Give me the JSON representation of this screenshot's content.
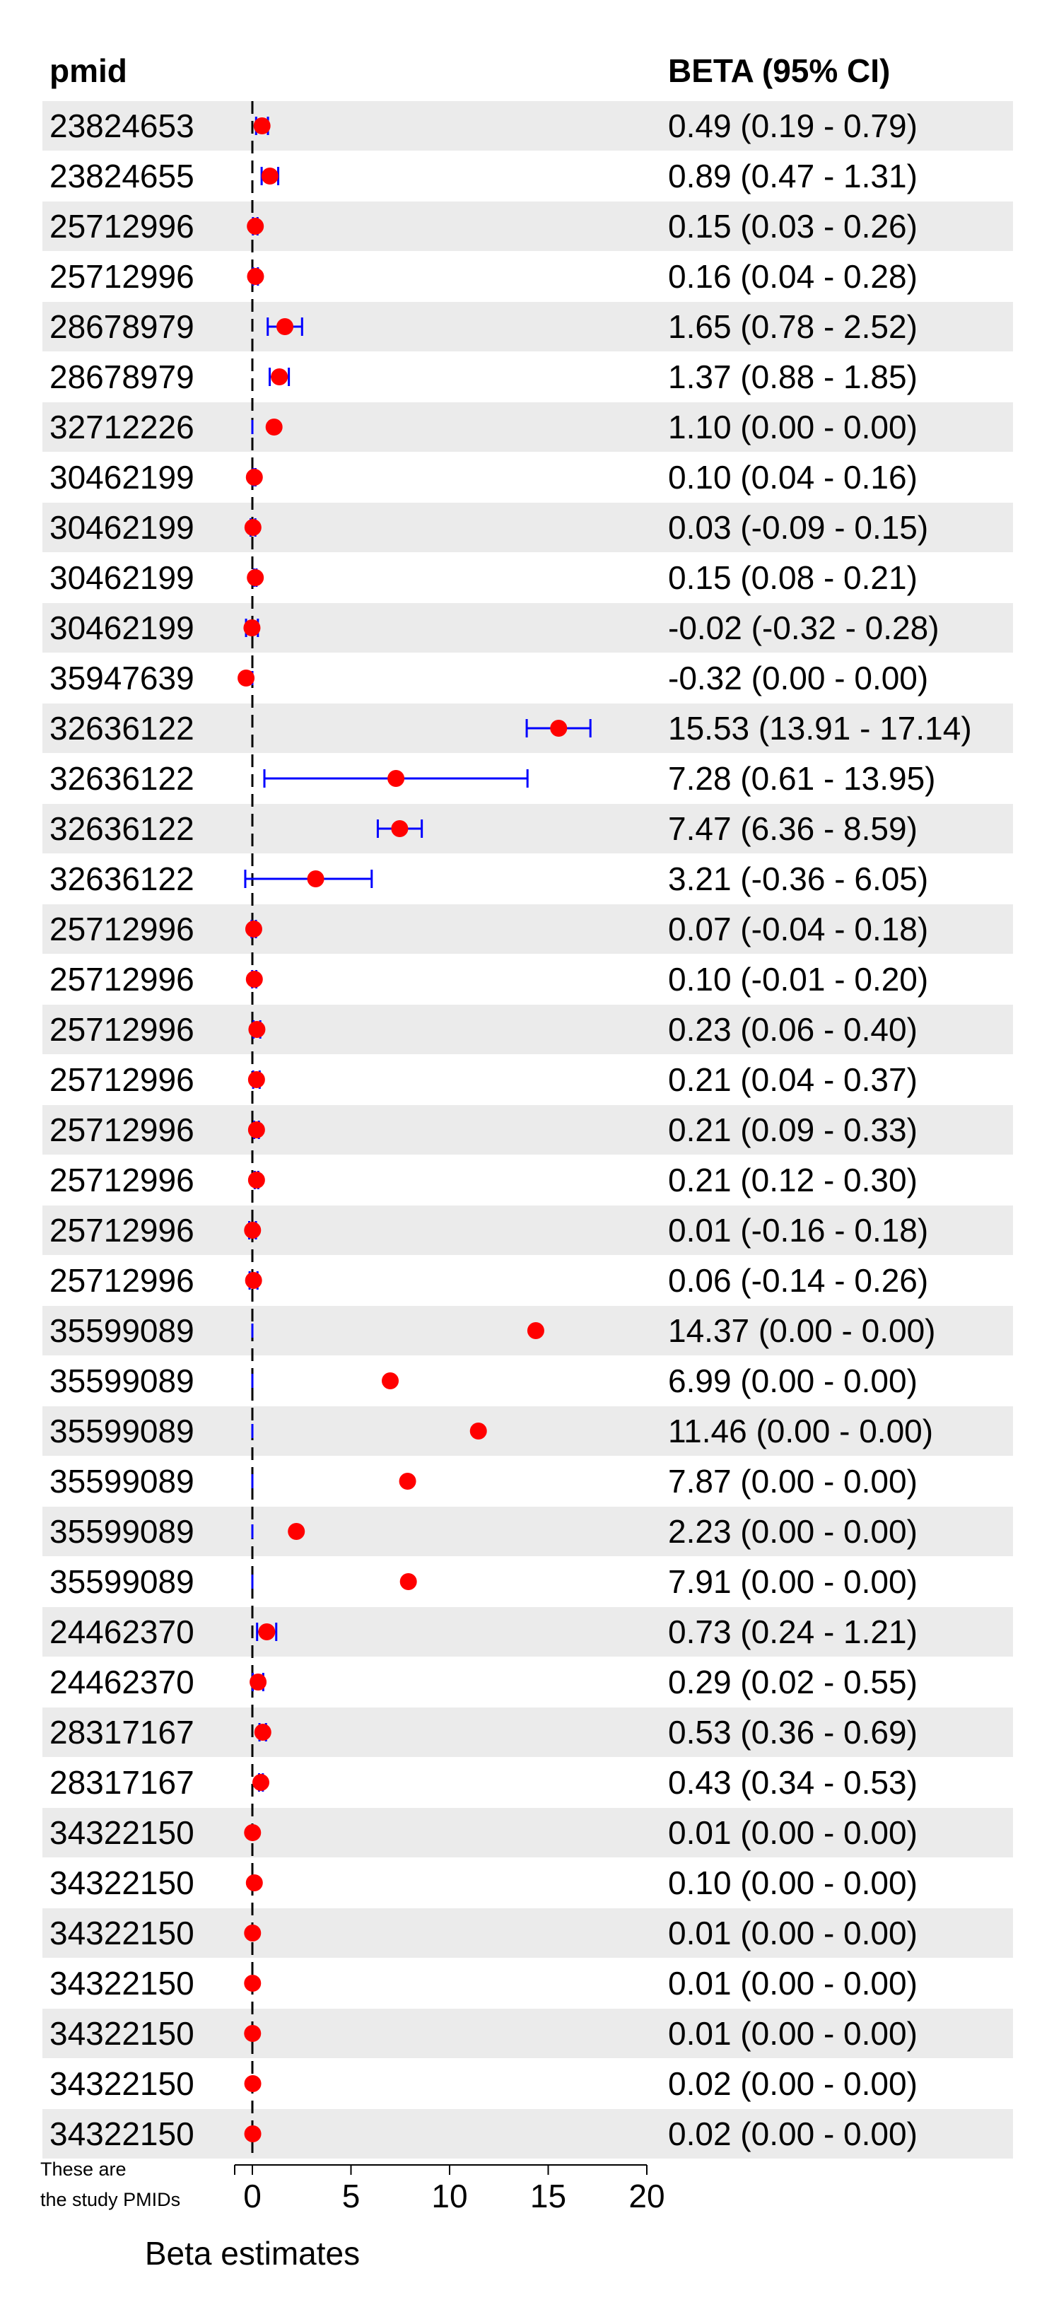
{
  "chart_data": {
    "type": "forest",
    "headers": {
      "left": "pmid",
      "right": "BETA (95% CI)"
    },
    "xlabel": "Beta estimates",
    "xlim": [
      -1,
      20
    ],
    "ticks": [
      0,
      5,
      10,
      15,
      20
    ],
    "reference_line": 0,
    "note": [
      "These are",
      "the study PMIDs"
    ],
    "colors": {
      "point": "#ff0000",
      "ci": "#0000ff",
      "stripe": "#ebebeb"
    },
    "rows": [
      {
        "pmid": "23824653",
        "beta": 0.49,
        "lo": 0.19,
        "hi": 0.79,
        "label": "0.49 (0.19 - 0.79)"
      },
      {
        "pmid": "23824655",
        "beta": 0.89,
        "lo": 0.47,
        "hi": 1.31,
        "label": "0.89 (0.47 - 1.31)"
      },
      {
        "pmid": "25712996",
        "beta": 0.15,
        "lo": 0.03,
        "hi": 0.26,
        "label": "0.15 (0.03 - 0.26)"
      },
      {
        "pmid": "25712996",
        "beta": 0.16,
        "lo": 0.04,
        "hi": 0.28,
        "label": "0.16 (0.04 - 0.28)"
      },
      {
        "pmid": "28678979",
        "beta": 1.65,
        "lo": 0.78,
        "hi": 2.52,
        "label": "1.65 (0.78 - 2.52)"
      },
      {
        "pmid": "28678979",
        "beta": 1.37,
        "lo": 0.88,
        "hi": 1.85,
        "label": "1.37 (0.88 - 1.85)"
      },
      {
        "pmid": "32712226",
        "beta": 1.1,
        "lo": 0.0,
        "hi": 0.0,
        "label": "1.10 (0.00 - 0.00)"
      },
      {
        "pmid": "30462199",
        "beta": 0.1,
        "lo": 0.04,
        "hi": 0.16,
        "label": "0.10 (0.04 - 0.16)"
      },
      {
        "pmid": "30462199",
        "beta": 0.03,
        "lo": -0.09,
        "hi": 0.15,
        "label": "0.03 (-0.09 - 0.15)"
      },
      {
        "pmid": "30462199",
        "beta": 0.15,
        "lo": 0.08,
        "hi": 0.21,
        "label": "0.15 (0.08 - 0.21)"
      },
      {
        "pmid": "30462199",
        "beta": -0.02,
        "lo": -0.32,
        "hi": 0.28,
        "label": "-0.02 (-0.32 - 0.28)"
      },
      {
        "pmid": "35947639",
        "beta": -0.32,
        "lo": 0.0,
        "hi": 0.0,
        "label": "-0.32 (0.00 - 0.00)"
      },
      {
        "pmid": "32636122",
        "beta": 15.53,
        "lo": 13.91,
        "hi": 17.14,
        "label": "15.53 (13.91 - 17.14)"
      },
      {
        "pmid": "32636122",
        "beta": 7.28,
        "lo": 0.61,
        "hi": 13.95,
        "label": "7.28 (0.61 - 13.95)"
      },
      {
        "pmid": "32636122",
        "beta": 7.47,
        "lo": 6.36,
        "hi": 8.59,
        "label": "7.47 (6.36 - 8.59)"
      },
      {
        "pmid": "32636122",
        "beta": 3.21,
        "lo": -0.36,
        "hi": 6.05,
        "label": "3.21 (-0.36 - 6.05)"
      },
      {
        "pmid": "25712996",
        "beta": 0.07,
        "lo": -0.04,
        "hi": 0.18,
        "label": "0.07 (-0.04 - 0.18)"
      },
      {
        "pmid": "25712996",
        "beta": 0.1,
        "lo": -0.01,
        "hi": 0.2,
        "label": "0.10 (-0.01 - 0.20)"
      },
      {
        "pmid": "25712996",
        "beta": 0.23,
        "lo": 0.06,
        "hi": 0.4,
        "label": "0.23 (0.06 - 0.40)"
      },
      {
        "pmid": "25712996",
        "beta": 0.21,
        "lo": 0.04,
        "hi": 0.37,
        "label": "0.21 (0.04 - 0.37)"
      },
      {
        "pmid": "25712996",
        "beta": 0.21,
        "lo": 0.09,
        "hi": 0.33,
        "label": "0.21 (0.09 - 0.33)"
      },
      {
        "pmid": "25712996",
        "beta": 0.21,
        "lo": 0.12,
        "hi": 0.3,
        "label": "0.21 (0.12 - 0.30)"
      },
      {
        "pmid": "25712996",
        "beta": 0.01,
        "lo": -0.16,
        "hi": 0.18,
        "label": "0.01 (-0.16 - 0.18)"
      },
      {
        "pmid": "25712996",
        "beta": 0.06,
        "lo": -0.14,
        "hi": 0.26,
        "label": "0.06 (-0.14 - 0.26)"
      },
      {
        "pmid": "35599089",
        "beta": 14.37,
        "lo": 0.0,
        "hi": 0.0,
        "label": "14.37 (0.00 - 0.00)"
      },
      {
        "pmid": "35599089",
        "beta": 6.99,
        "lo": 0.0,
        "hi": 0.0,
        "label": "6.99 (0.00 - 0.00)"
      },
      {
        "pmid": "35599089",
        "beta": 11.46,
        "lo": 0.0,
        "hi": 0.0,
        "label": "11.46 (0.00 - 0.00)"
      },
      {
        "pmid": "35599089",
        "beta": 7.87,
        "lo": 0.0,
        "hi": 0.0,
        "label": "7.87 (0.00 - 0.00)"
      },
      {
        "pmid": "35599089",
        "beta": 2.23,
        "lo": 0.0,
        "hi": 0.0,
        "label": "2.23 (0.00 - 0.00)"
      },
      {
        "pmid": "35599089",
        "beta": 7.91,
        "lo": 0.0,
        "hi": 0.0,
        "label": "7.91 (0.00 - 0.00)"
      },
      {
        "pmid": "24462370",
        "beta": 0.73,
        "lo": 0.24,
        "hi": 1.21,
        "label": "0.73 (0.24 - 1.21)"
      },
      {
        "pmid": "24462370",
        "beta": 0.29,
        "lo": 0.02,
        "hi": 0.55,
        "label": "0.29 (0.02 - 0.55)"
      },
      {
        "pmid": "28317167",
        "beta": 0.53,
        "lo": 0.36,
        "hi": 0.69,
        "label": "0.53 (0.36 - 0.69)"
      },
      {
        "pmid": "28317167",
        "beta": 0.43,
        "lo": 0.34,
        "hi": 0.53,
        "label": "0.43 (0.34 - 0.53)"
      },
      {
        "pmid": "34322150",
        "beta": 0.01,
        "lo": 0.0,
        "hi": 0.0,
        "label": "0.01 (0.00 - 0.00)"
      },
      {
        "pmid": "34322150",
        "beta": 0.1,
        "lo": 0.0,
        "hi": 0.0,
        "label": "0.10 (0.00 - 0.00)"
      },
      {
        "pmid": "34322150",
        "beta": 0.01,
        "lo": 0.0,
        "hi": 0.0,
        "label": "0.01 (0.00 - 0.00)"
      },
      {
        "pmid": "34322150",
        "beta": 0.01,
        "lo": 0.0,
        "hi": 0.0,
        "label": "0.01 (0.00 - 0.00)"
      },
      {
        "pmid": "34322150",
        "beta": 0.01,
        "lo": 0.0,
        "hi": 0.0,
        "label": "0.01 (0.00 - 0.00)"
      },
      {
        "pmid": "34322150",
        "beta": 0.02,
        "lo": 0.0,
        "hi": 0.0,
        "label": "0.02 (0.00 - 0.00)"
      },
      {
        "pmid": "34322150",
        "beta": 0.02,
        "lo": 0.0,
        "hi": 0.0,
        "label": "0.02 (0.00 - 0.00)"
      }
    ]
  }
}
